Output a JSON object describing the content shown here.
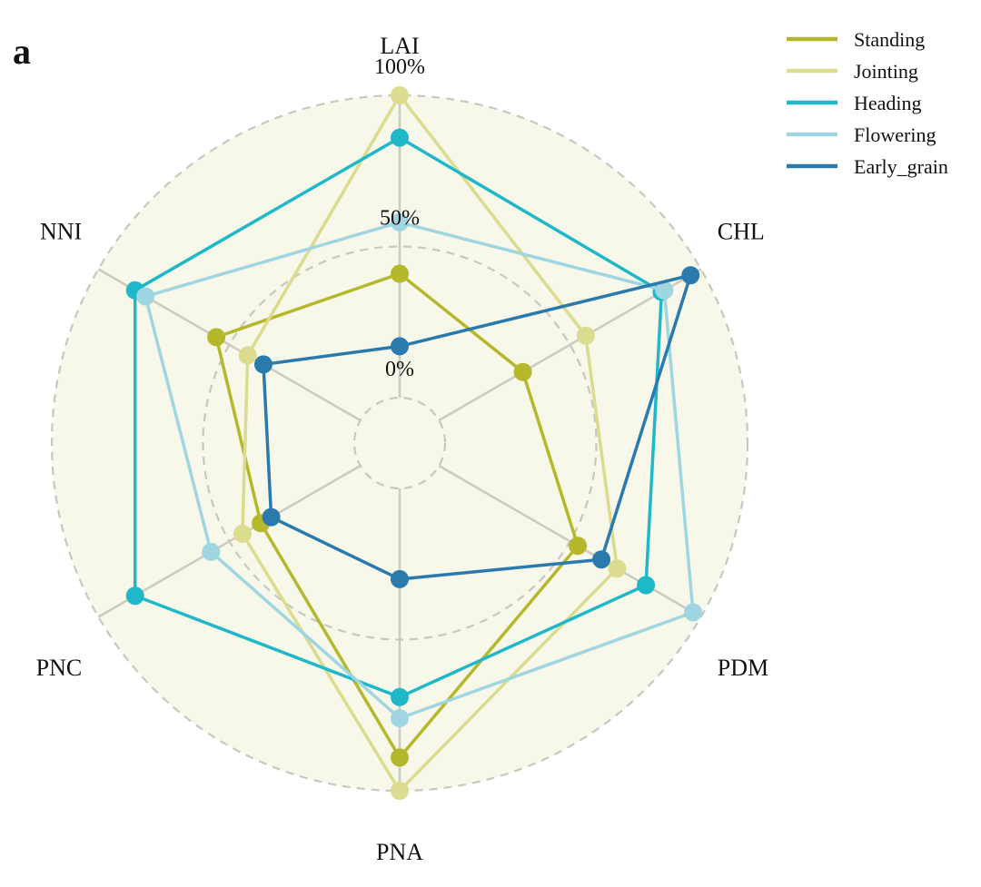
{
  "panel_label": "a",
  "chart_data": {
    "type": "radar",
    "axes": [
      "LAI",
      "CHL",
      "PDM",
      "PNA",
      "PNC",
      "NNI"
    ],
    "tick_labels": [
      "0%",
      "50%",
      "100%"
    ],
    "range": [
      0,
      100
    ],
    "grid": "dashed-circles",
    "legend_position": "top-right",
    "series": [
      {
        "name": "Standing",
        "color": "#b5b82a",
        "values": [
          41,
          32,
          53,
          89,
          38,
          55
        ]
      },
      {
        "name": "Jointing",
        "color": "#dbdc8e",
        "values": [
          100,
          56,
          68,
          100,
          45,
          43
        ]
      },
      {
        "name": "Heading",
        "color": "#1fb8c9",
        "values": [
          86,
          85,
          79,
          69,
          86,
          86
        ]
      },
      {
        "name": "Flowering",
        "color": "#9fd6e2",
        "values": [
          58,
          86,
          97,
          76,
          57,
          82
        ]
      },
      {
        "name": "Early_grain",
        "color": "#2a7aae",
        "values": [
          17,
          96,
          62,
          30,
          34,
          37
        ]
      }
    ]
  }
}
